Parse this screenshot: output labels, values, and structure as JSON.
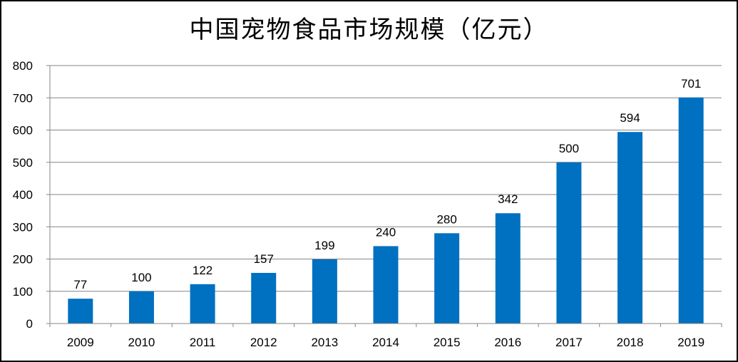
{
  "chart_data": {
    "type": "bar",
    "title": "中国宠物食品市场规模（亿元）",
    "categories": [
      "2009",
      "2010",
      "2011",
      "2012",
      "2013",
      "2014",
      "2015",
      "2016",
      "2017",
      "2018",
      "2019"
    ],
    "series": [
      {
        "values": [
          77,
          100,
          122,
          157,
          199,
          240,
          280,
          342,
          500,
          594,
          701
        ],
        "color": "#0070C0"
      }
    ],
    "ylim": [
      0,
      800
    ],
    "yticks": [
      0,
      100,
      200,
      300,
      400,
      500,
      600,
      700,
      800
    ],
    "grid": true,
    "data_labels": true,
    "legend": "none"
  }
}
